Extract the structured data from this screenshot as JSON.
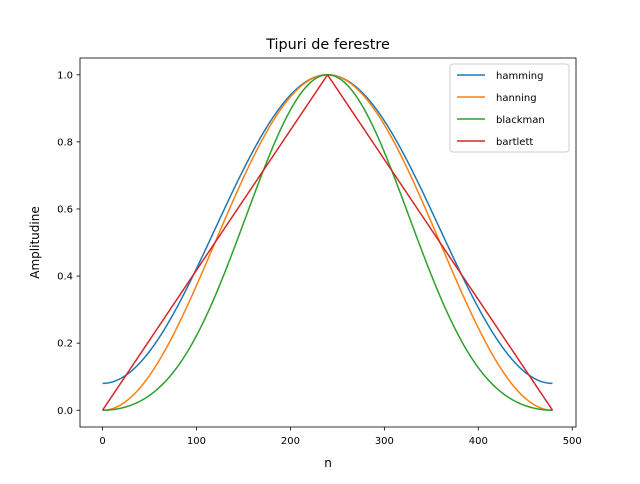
{
  "chart_data": {
    "type": "line",
    "title": "Tipuri de ferestre",
    "xlabel": "n",
    "ylabel": "Amplitudine",
    "xlim": [
      -24,
      504
    ],
    "ylim": [
      -0.05,
      1.05
    ],
    "x_ticks": [
      0,
      100,
      200,
      300,
      400,
      500
    ],
    "x_tick_labels": [
      "0",
      "100",
      "200",
      "300",
      "400",
      "500"
    ],
    "y_ticks": [
      0.0,
      0.2,
      0.4,
      0.6,
      0.8,
      1.0
    ],
    "y_tick_labels": [
      "0.0",
      "0.2",
      "0.4",
      "0.6",
      "0.8",
      "1.0"
    ],
    "grid": false,
    "legend_position": "top-right",
    "n_points": 480,
    "x_range": [
      0,
      479
    ],
    "series": [
      {
        "name": "hamming",
        "window": "hamming",
        "color": "#1f77b4"
      },
      {
        "name": "hanning",
        "window": "hanning",
        "color": "#ff7f0e"
      },
      {
        "name": "blackman",
        "window": "blackman",
        "color": "#2ca02c"
      },
      {
        "name": "bartlett",
        "window": "bartlett",
        "color": "#d62728"
      }
    ]
  }
}
